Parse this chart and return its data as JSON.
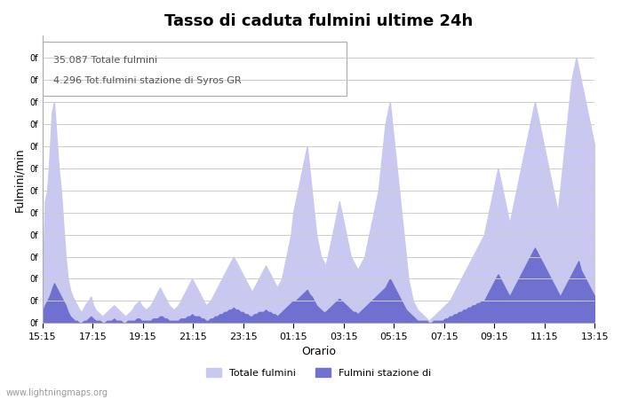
{
  "title": "Tasso di caduta fulmini ultime 24h",
  "xlabel": "Orario",
  "ylabel": "Fulmini/min",
  "annotation_line1": "35.087 Totale fulmini",
  "annotation_line2": "4.296 Tot.fulmini stazione di Syros GR",
  "legend_label1": "Totale fulmini",
  "legend_label2": "Fulmini stazione di",
  "color1": "#c8c8f0",
  "color2": "#7070d0",
  "background_color": "#ffffff",
  "grid_color": "#cccccc",
  "title_fontsize": 13,
  "xtick_labels": [
    "15:15",
    "17:15",
    "19:15",
    "21:15",
    "23:15",
    "01:15",
    "03:15",
    "05:15",
    "07:15",
    "09:15",
    "11:15",
    "13:15"
  ],
  "watermark": "www.lightningmaps.org",
  "totale_fulmini": [
    18,
    55,
    60,
    75,
    95,
    100,
    85,
    70,
    60,
    45,
    30,
    20,
    15,
    12,
    10,
    8,
    6,
    5,
    7,
    9,
    10,
    12,
    8,
    6,
    5,
    4,
    3,
    4,
    5,
    6,
    7,
    8,
    7,
    6,
    5,
    4,
    3,
    4,
    5,
    6,
    8,
    9,
    10,
    8,
    7,
    6,
    7,
    8,
    10,
    12,
    14,
    16,
    14,
    12,
    10,
    8,
    7,
    6,
    7,
    8,
    10,
    12,
    14,
    16,
    18,
    20,
    18,
    16,
    14,
    12,
    10,
    8,
    9,
    10,
    12,
    14,
    16,
    18,
    20,
    22,
    24,
    26,
    28,
    30,
    28,
    26,
    24,
    22,
    20,
    18,
    16,
    14,
    16,
    18,
    20,
    22,
    24,
    26,
    24,
    22,
    20,
    18,
    16,
    18,
    20,
    25,
    30,
    35,
    40,
    50,
    55,
    60,
    65,
    70,
    75,
    80,
    70,
    60,
    50,
    40,
    35,
    30,
    28,
    26,
    30,
    35,
    40,
    45,
    50,
    55,
    50,
    45,
    40,
    35,
    30,
    28,
    26,
    24,
    26,
    28,
    30,
    35,
    40,
    45,
    50,
    55,
    60,
    70,
    80,
    90,
    95,
    100,
    90,
    80,
    70,
    60,
    50,
    40,
    30,
    20,
    15,
    10,
    8,
    6,
    5,
    4,
    3,
    2,
    1,
    2,
    3,
    4,
    5,
    6,
    7,
    8,
    9,
    10,
    12,
    14,
    16,
    18,
    20,
    22,
    24,
    26,
    28,
    30,
    32,
    34,
    36,
    38,
    40,
    45,
    50,
    55,
    60,
    65,
    70,
    65,
    60,
    55,
    50,
    45,
    50,
    55,
    60,
    65,
    70,
    75,
    80,
    85,
    90,
    95,
    100,
    95,
    90,
    85,
    80,
    75,
    70,
    65,
    60,
    55,
    50,
    60,
    70,
    80,
    90,
    100,
    110,
    115,
    120,
    115,
    110,
    105,
    100,
    95,
    90,
    85,
    80
  ],
  "stazione_fulmini": [
    5,
    8,
    10,
    12,
    15,
    18,
    16,
    14,
    12,
    10,
    8,
    5,
    3,
    2,
    1,
    1,
    0,
    0,
    1,
    1,
    2,
    3,
    2,
    1,
    1,
    1,
    0,
    0,
    1,
    1,
    1,
    2,
    1,
    1,
    1,
    0,
    0,
    1,
    1,
    1,
    1,
    2,
    2,
    1,
    1,
    1,
    1,
    1,
    2,
    2,
    2,
    3,
    3,
    2,
    2,
    1,
    1,
    1,
    1,
    1,
    2,
    2,
    2,
    3,
    3,
    4,
    3,
    3,
    3,
    2,
    2,
    1,
    1,
    2,
    2,
    3,
    3,
    4,
    4,
    5,
    5,
    6,
    6,
    7,
    6,
    6,
    5,
    5,
    4,
    4,
    3,
    3,
    4,
    4,
    5,
    5,
    5,
    6,
    5,
    5,
    4,
    4,
    3,
    4,
    5,
    6,
    7,
    8,
    9,
    10,
    10,
    11,
    12,
    13,
    14,
    15,
    13,
    12,
    10,
    8,
    7,
    6,
    5,
    5,
    6,
    7,
    8,
    9,
    10,
    11,
    10,
    9,
    8,
    7,
    6,
    5,
    5,
    4,
    5,
    6,
    7,
    8,
    9,
    10,
    11,
    12,
    13,
    14,
    15,
    16,
    18,
    20,
    18,
    16,
    14,
    12,
    10,
    8,
    6,
    5,
    4,
    3,
    2,
    1,
    1,
    1,
    1,
    1,
    0,
    0,
    1,
    1,
    1,
    1,
    1,
    2,
    2,
    3,
    3,
    4,
    4,
    5,
    5,
    6,
    6,
    7,
    7,
    8,
    8,
    9,
    9,
    10,
    10,
    12,
    14,
    16,
    18,
    20,
    22,
    20,
    18,
    16,
    14,
    12,
    14,
    16,
    18,
    20,
    22,
    24,
    26,
    28,
    30,
    32,
    34,
    32,
    30,
    28,
    26,
    24,
    22,
    20,
    18,
    16,
    14,
    12,
    14,
    16,
    18,
    20,
    22,
    24,
    26,
    28,
    24,
    22,
    20,
    18,
    16,
    14,
    12,
    10,
    8,
    6,
    4,
    2
  ]
}
